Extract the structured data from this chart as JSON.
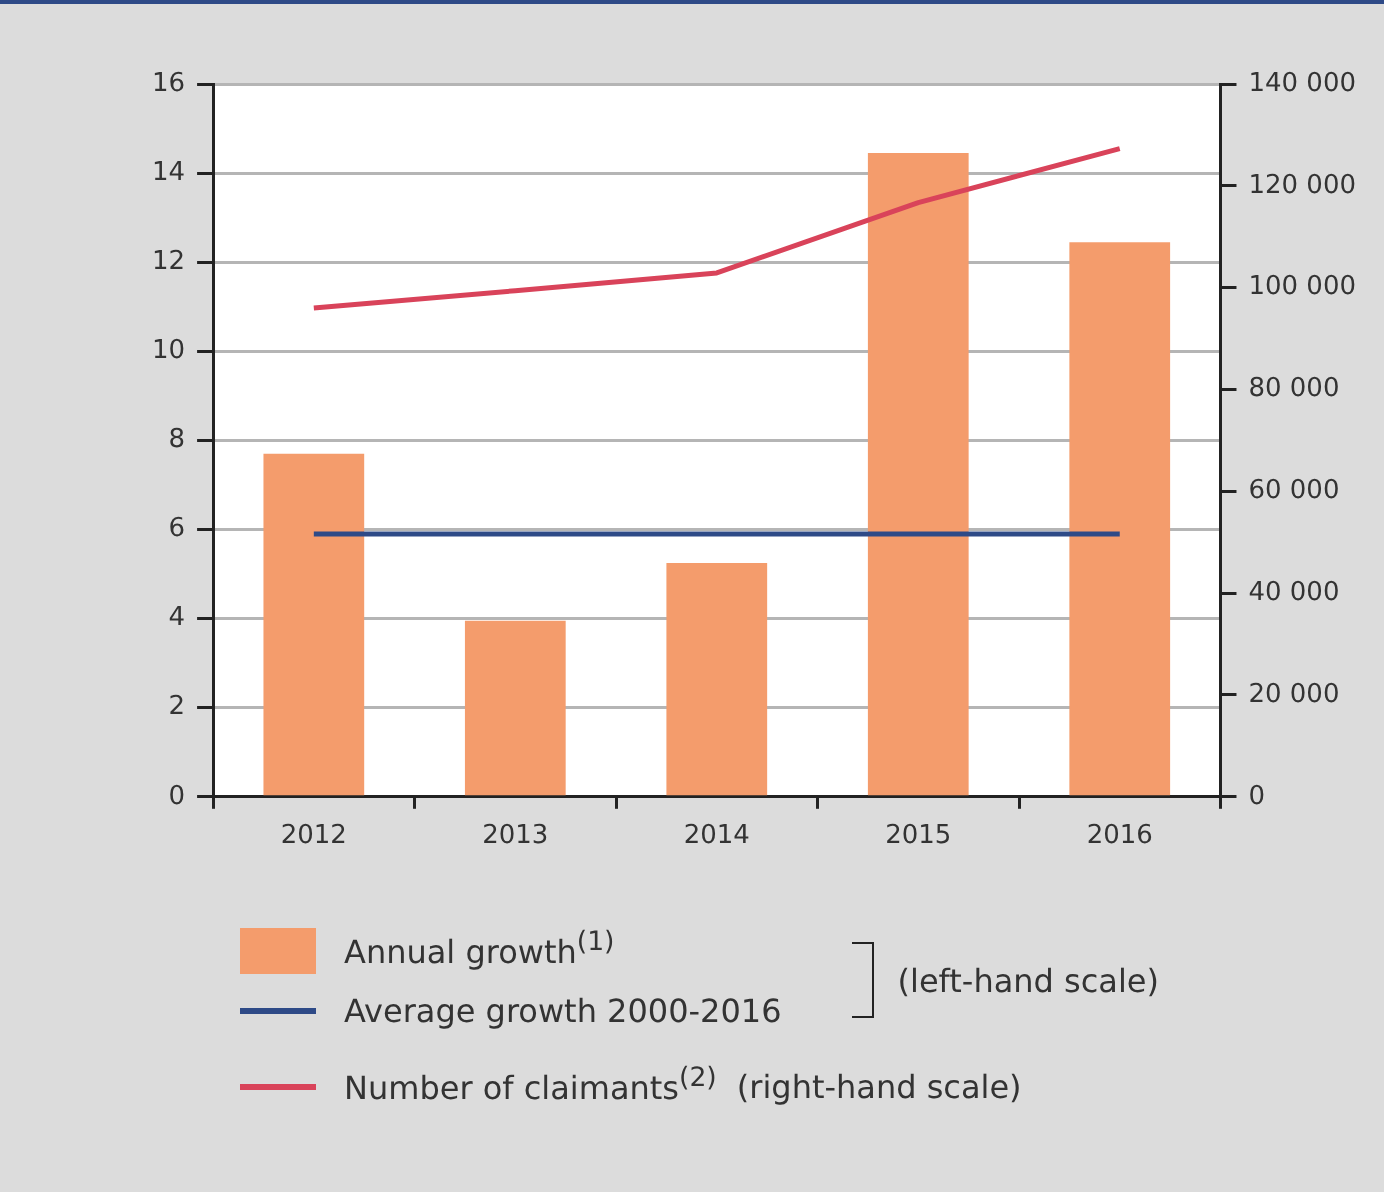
{
  "chart_data": {
    "type": "bar",
    "categories": [
      "2012",
      "2013",
      "2014",
      "2015",
      "2016"
    ],
    "series": [
      {
        "name": "Annual growth$^{(1)}$",
        "color": "#f49c6c",
        "values": [
          7.7,
          3.95,
          5.25,
          14.45,
          12.45
        ]
      },
      {
        "name": "Average growth 2000-2016",
        "type": "line",
        "color": "#2e4a87",
        "values": [
          5.9,
          5.9,
          5.9,
          5.9,
          5.9
        ]
      },
      {
        "name": "Number of claimants$^{(2)}$",
        "type": "line",
        "axis": "y2",
        "color": "#d9435a",
        "values": [
          96000,
          99400,
          102900,
          116700,
          127300
        ]
      }
    ],
    "ylim": [
      0,
      16
    ],
    "yticks": [
      0,
      2,
      4,
      6,
      8,
      10,
      12,
      14,
      16
    ],
    "y2lim": [
      0,
      140000
    ],
    "y2ticks": [
      0,
      {
        "value": 20000,
        "label": "20 000"
      },
      {
        "value": 40000,
        "label": "40 000"
      },
      {
        "value": 60000,
        "label": "60 000"
      },
      {
        "value": 80000,
        "label": "80 000"
      },
      {
        "value": 100000,
        "label": "100 000"
      },
      {
        "value": 120000,
        "label": "120 000"
      },
      {
        "value": 140000,
        "label": "140 000"
      }
    ],
    "grid": "y",
    "legend": "bottom",
    "marker": "none",
    "line_style": "solid",
    "annotations": [
      "(left-hand scale)",
      "(right-hand scale)"
    ]
  }
}
